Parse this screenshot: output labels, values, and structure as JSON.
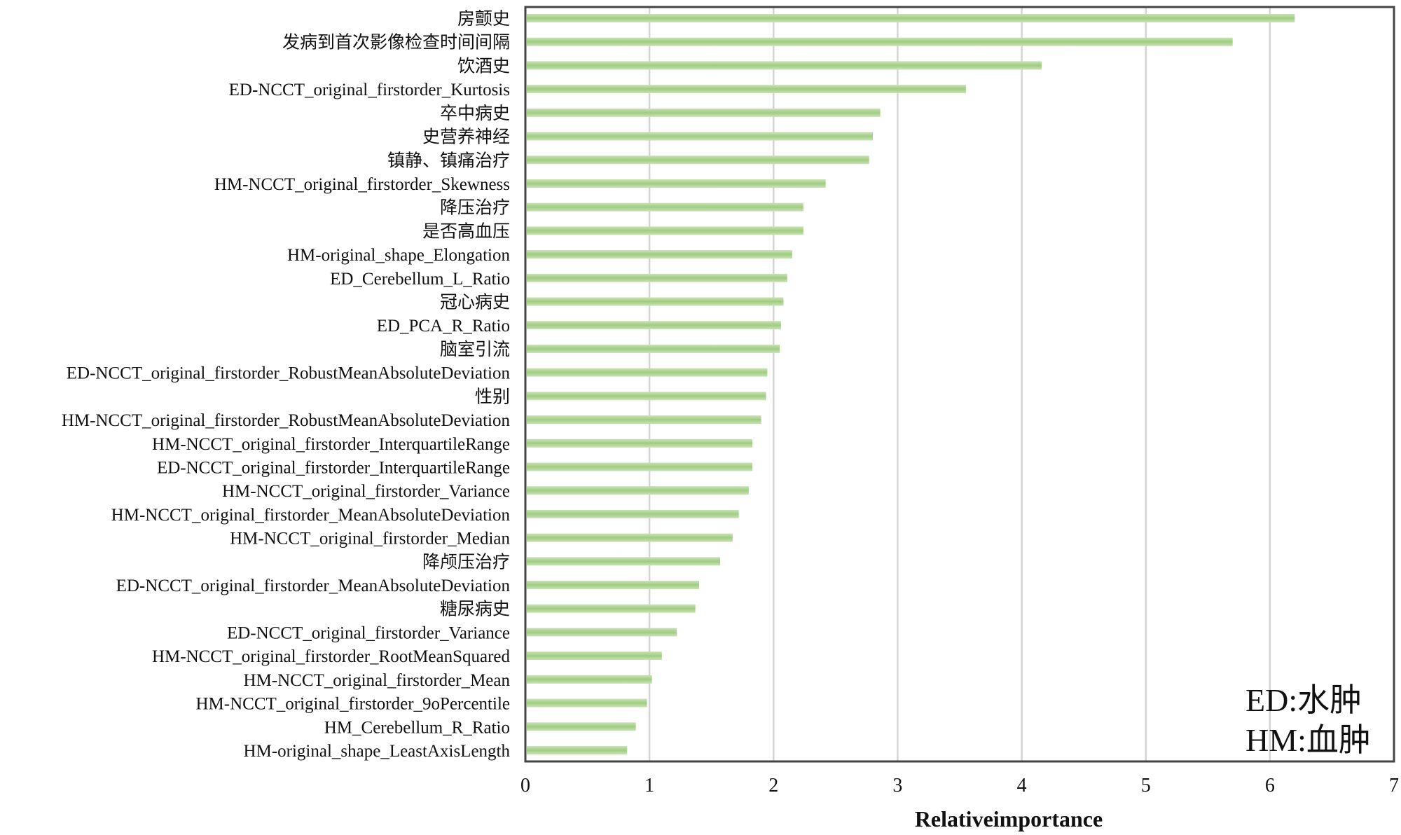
{
  "chart_data": {
    "type": "bar",
    "orientation": "horizontal",
    "xlabel": "Relativeimportance",
    "ylabel": "",
    "xlim": [
      0,
      7
    ],
    "xticks": [
      "0",
      "1",
      "2",
      "3",
      "4",
      "5",
      "6",
      "7"
    ],
    "grid": "vertical",
    "bar_color": "#a9d18e",
    "categories": [
      "房颤史",
      "发病到首次影像检查时间间隔",
      "饮酒史",
      "ED-NCCT_original_firstorder_Kurtosis",
      "卒中病史",
      "史营养神经",
      "镇静、镇痛治疗",
      "HM-NCCT_original_firstorder_Skewness",
      "降压治疗",
      "是否高血压",
      "HM-original_shape_Elongation",
      "ED_Cerebellum_L_Ratio",
      "冠心病史",
      "ED_PCA_R_Ratio",
      "脑室引流",
      "ED-NCCT_original_firstorder_RobustMeanAbsoluteDeviation",
      "性别",
      "HM-NCCT_original_firstorder_RobustMeanAbsoluteDeviation",
      "HM-NCCT_original_firstorder_InterquartileRange",
      "ED-NCCT_original_firstorder_InterquartileRange",
      "HM-NCCT_original_firstorder_Variance",
      "HM-NCCT_original_firstorder_MeanAbsoluteDeviation",
      "HM-NCCT_original_firstorder_Median",
      "降颅压治疗",
      "ED-NCCT_original_firstorder_MeanAbsoluteDeviation",
      "糖尿病史",
      "ED-NCCT_original_firstorder_Variance",
      "HM-NCCT_original_firstorder_RootMeanSquared",
      "HM-NCCT_original_firstorder_Mean",
      "HM-NCCT_original_firstorder_9oPercentile",
      "HM_Cerebellum_R_Ratio",
      "HM-original_shape_LeastAxisLength"
    ],
    "values": [
      6.2,
      5.7,
      4.16,
      3.55,
      2.86,
      2.8,
      2.77,
      2.42,
      2.24,
      2.24,
      2.15,
      2.11,
      2.08,
      2.06,
      2.05,
      1.95,
      1.94,
      1.9,
      1.83,
      1.83,
      1.8,
      1.72,
      1.67,
      1.57,
      1.4,
      1.37,
      1.22,
      1.1,
      1.02,
      0.98,
      0.89,
      0.82
    ],
    "annotations": [
      "ED:水肿",
      "HM:血肿"
    ]
  }
}
